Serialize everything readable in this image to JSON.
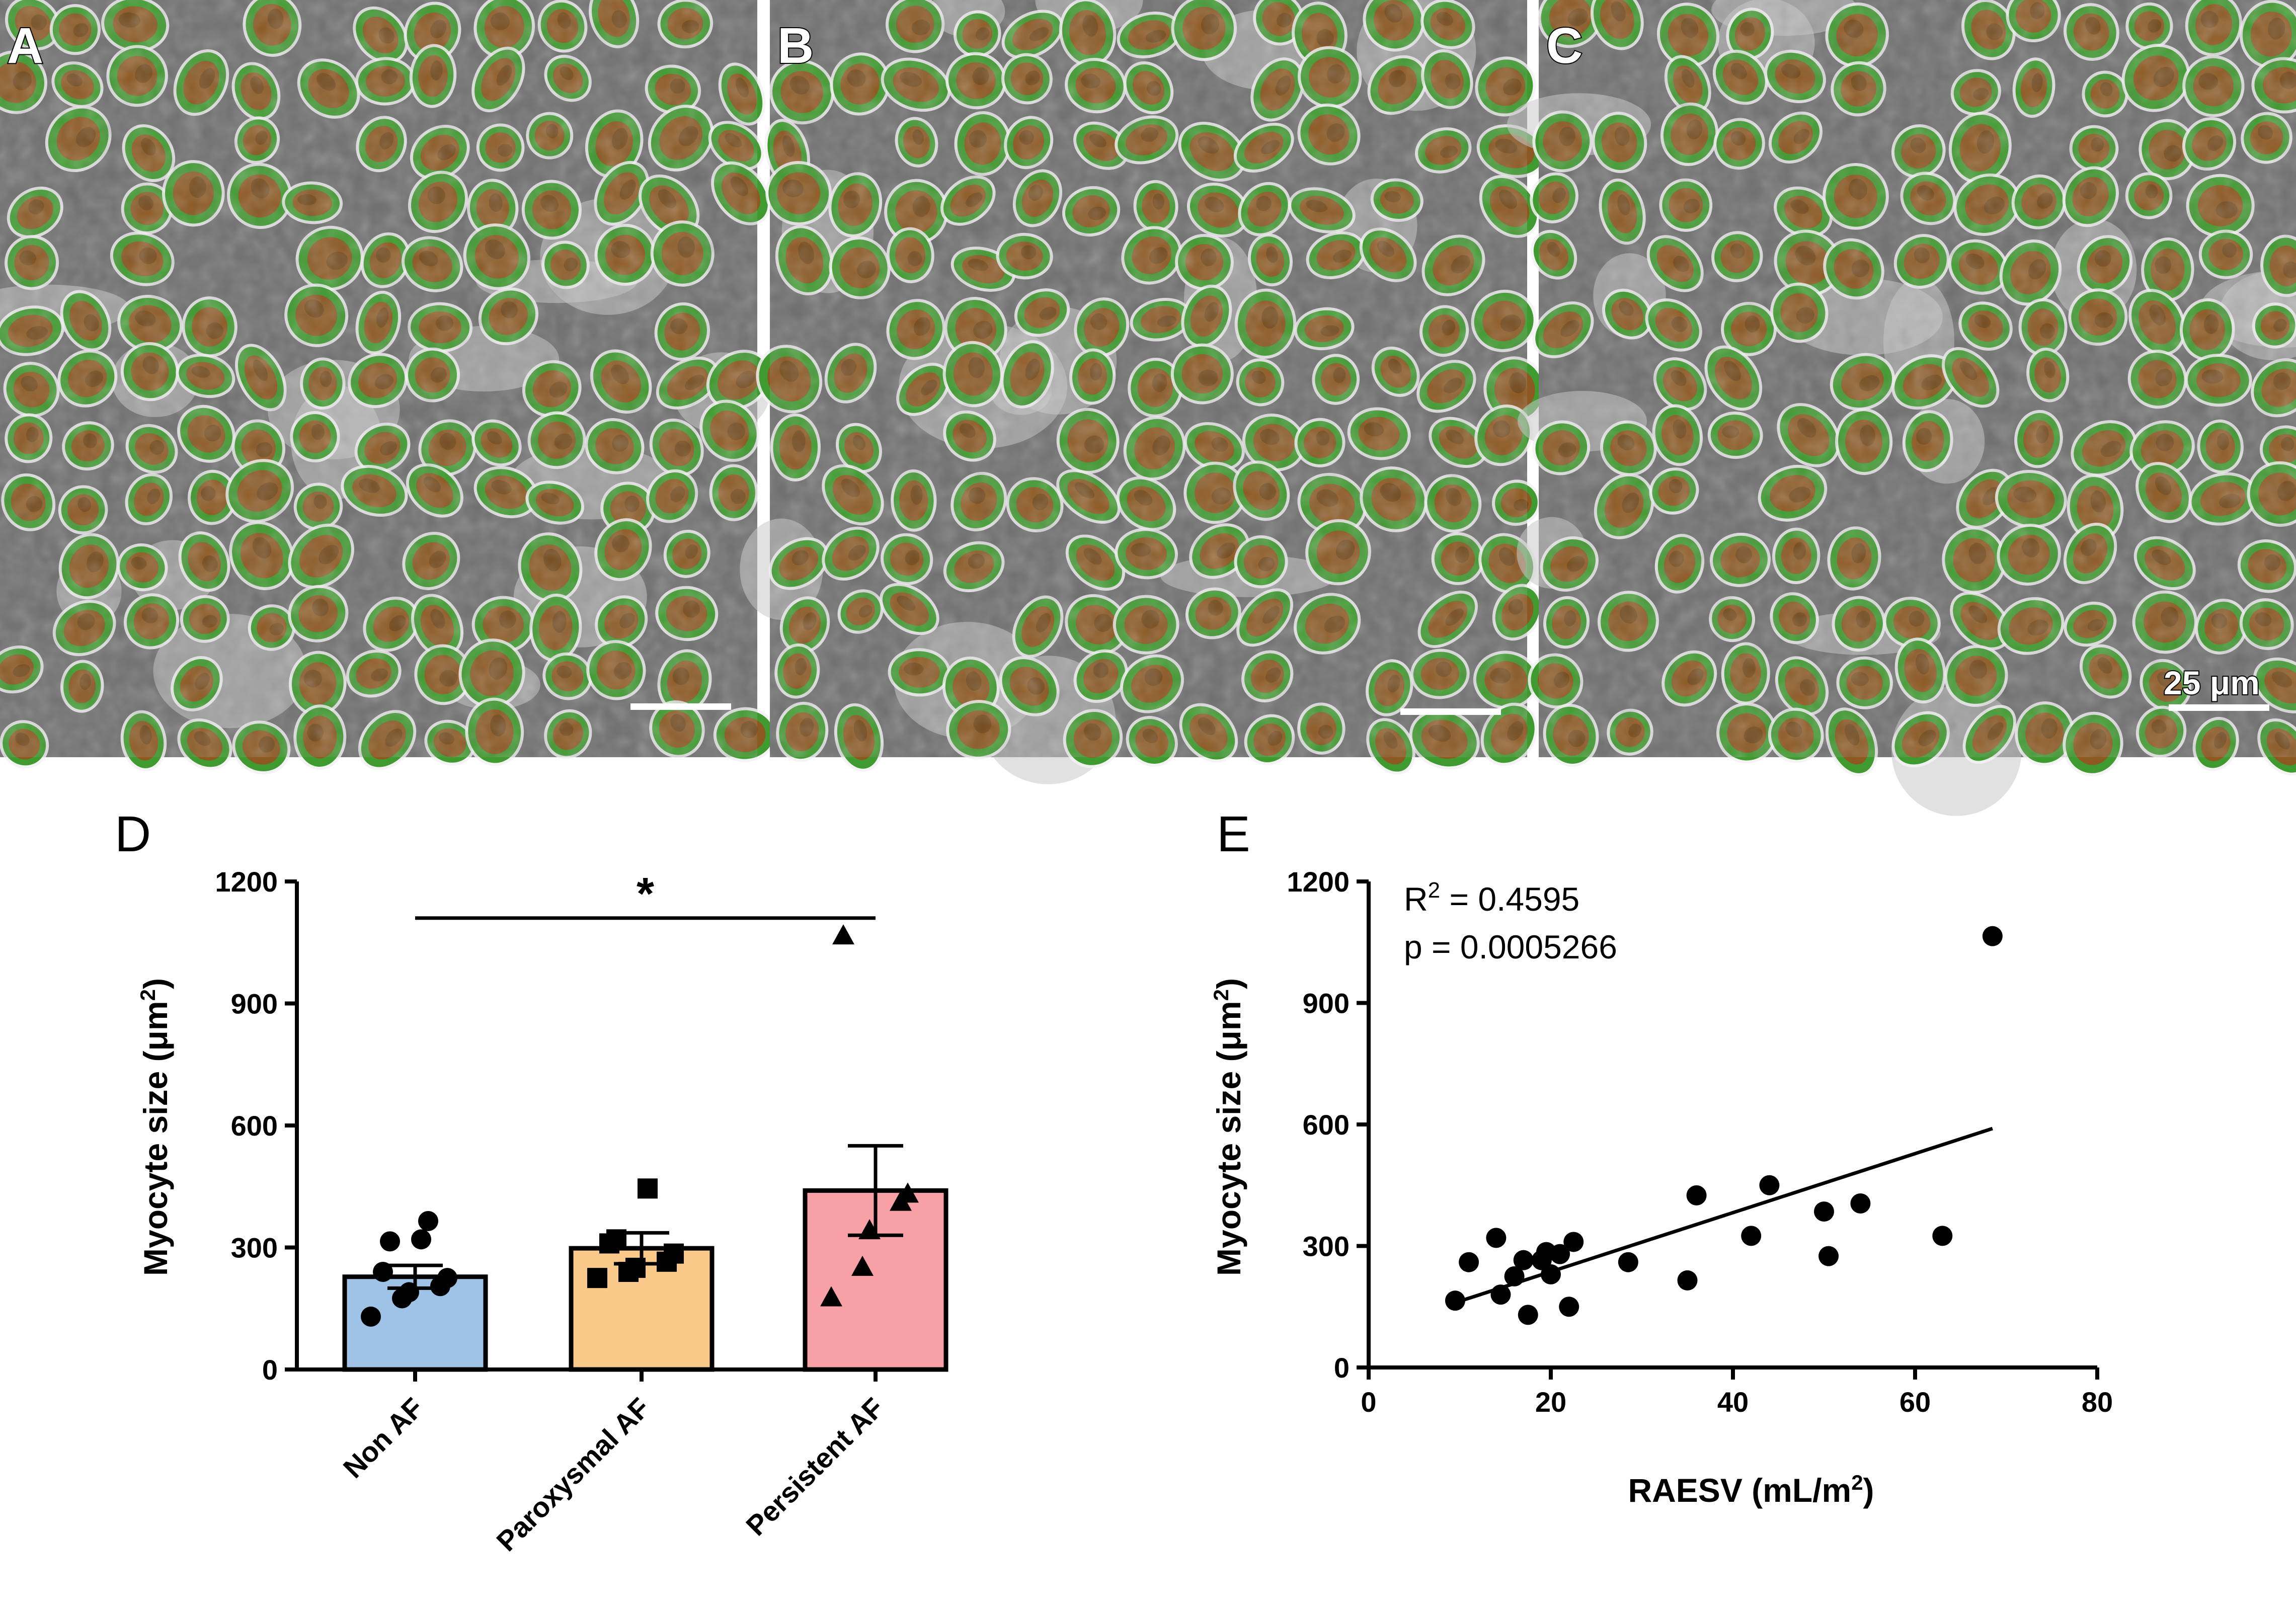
{
  "micrographs": [
    {
      "label": "A"
    },
    {
      "label": "B"
    },
    {
      "label": "C",
      "scalebar_label": "25 μm"
    }
  ],
  "panel_d": {
    "label": "D",
    "significance_marker": "*"
  },
  "panel_e": {
    "label": "E",
    "stats": {
      "r2_prefix": "R",
      "r2_sup": "2",
      "r2_value": " = 0.4595",
      "p_text": "p = 0.0005266"
    }
  },
  "colors": {
    "non_af_bar": "#9fc3e7",
    "paroxysmal_bar": "#f9c98a",
    "persistent_bar": "#f7a0a6",
    "myocyte_green": "#3f9a2f",
    "myocyte_red": "#a8431f",
    "tissue_grey": "#c8c8c8"
  },
  "chart_data": [
    {
      "type": "bar",
      "title": "",
      "ylabel": "Myocyte size (μm",
      "ylabel_sup": "2",
      "ylabel_close": ")",
      "ylim": [
        0,
        1200
      ],
      "yticks": [
        "0",
        "300",
        "600",
        "900",
        "1200"
      ],
      "categories": [
        "Non AF",
        "Paroxysmal AF",
        "Persistent AF"
      ],
      "values": [
        228,
        298,
        440
      ],
      "sem": [
        28,
        38,
        110
      ],
      "points": [
        [
          130,
          175,
          190,
          205,
          225,
          240,
          315,
          320,
          365
        ],
        [
          225,
          240,
          250,
          265,
          285,
          310,
          320,
          445
        ],
        [
          175,
          250,
          340,
          410,
          430,
          1065
        ]
      ],
      "point_markers": [
        "circle",
        "square",
        "triangle"
      ],
      "significance": {
        "from": "Non AF",
        "to": "Persistent AF",
        "marker": "*",
        "y": 1110
      }
    },
    {
      "type": "scatter",
      "title": "",
      "xlabel": "RAESV (mL/m",
      "xlabel_sup": "2",
      "xlabel_close": ")",
      "ylabel": "Myocyte size (μm",
      "ylabel_sup": "2",
      "ylabel_close": ")",
      "xlim": [
        0,
        80
      ],
      "ylim": [
        0,
        1200
      ],
      "xticks": [
        "0",
        "20",
        "40",
        "60",
        "80"
      ],
      "yticks": [
        "0",
        "300",
        "600",
        "900",
        "1200"
      ],
      "x": [
        9.5,
        11,
        14,
        14.5,
        16,
        17,
        17.5,
        19,
        19.5,
        20,
        21,
        22,
        22.5,
        28.5,
        35,
        36,
        42,
        44,
        50,
        50.5,
        54,
        63,
        68.5
      ],
      "y": [
        165,
        260,
        320,
        180,
        225,
        265,
        130,
        265,
        285,
        230,
        280,
        150,
        310,
        260,
        215,
        425,
        325,
        450,
        385,
        275,
        405,
        325,
        1065
      ],
      "fit": {
        "x": [
          9.5,
          68.5
        ],
        "y": [
          160,
          590
        ]
      }
    }
  ]
}
